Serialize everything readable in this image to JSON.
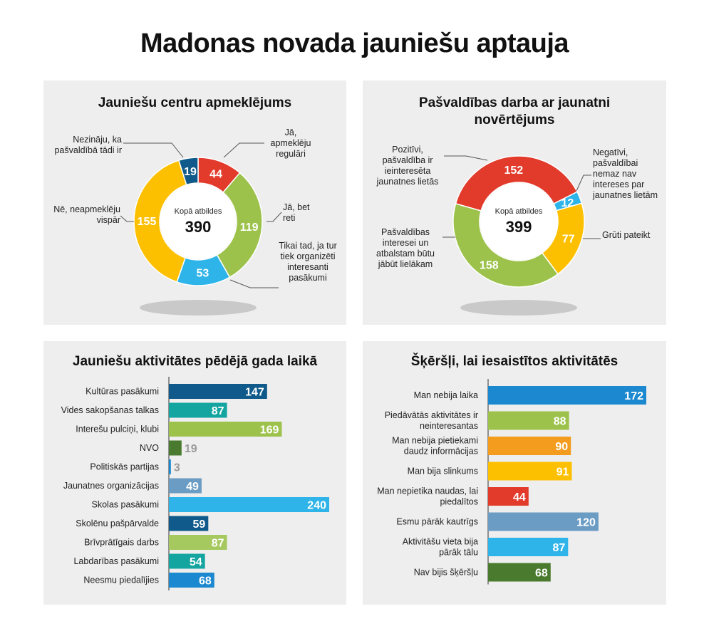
{
  "title": "Madonas novada jauniešu aptauja",
  "colors": {
    "red": "#e23a2b",
    "green": "#9cc24b",
    "lightblue": "#2eb4e8",
    "yellow": "#fdc000",
    "navy": "#0f5a8a",
    "teal": "#14a5a1",
    "darkgreen": "#4a7a2d",
    "blue": "#1b88cf",
    "steel": "#6b9cc4",
    "lightgreen": "#a6c95f",
    "orange": "#f39c1e",
    "gray": "#9a9a9a"
  },
  "chart_data": [
    {
      "type": "pie",
      "title": "Jauniešu centru apmeklējums",
      "center_label": "Kopā atbildes",
      "total": "390",
      "slices": [
        {
          "value": 44,
          "label": "Jā, apmeklēju regulāri",
          "color": "#e23a2b"
        },
        {
          "value": 119,
          "label": "Jā, bet reti",
          "color": "#9cc24b"
        },
        {
          "value": 53,
          "label": "Tikai tad, ja tur tiek organizēti interesanti pasākumi",
          "color": "#2eb4e8"
        },
        {
          "value": 155,
          "label": "Nē, neapmeklēju vispār",
          "color": "#fdc000"
        },
        {
          "value": 19,
          "label": "Nezināju, ka pašvaldībā tādi ir",
          "color": "#0f5a8a"
        }
      ]
    },
    {
      "type": "pie",
      "title": "Pašvaldības darba ar jaunatni novērtējums",
      "center_label": "Kopā atbildes",
      "total": "399",
      "slices": [
        {
          "value": 12,
          "label": "Negatīvi, pašvaldībai nemaz nav intereses par jaunatnes lietām",
          "color": "#2eb4e8"
        },
        {
          "value": 77,
          "label": "Grūti pateikt",
          "color": "#fdc000"
        },
        {
          "value": 158,
          "label": "Pašvaldības interesei un atbalstam būtu jābūt lielākam",
          "color": "#9cc24b"
        },
        {
          "value": 152,
          "label": "Pozitīvi, pašvaldība ir ieinteresēta jaunatnes lietās",
          "color": "#e23a2b"
        }
      ]
    },
    {
      "type": "bar",
      "title": "Jauniešu aktivitātes pēdējā gada laikā",
      "categories": [
        "Kultūras pasākumi",
        "Vides sakopšanas talkas",
        "Interešu pulciņi, klubi",
        "NVO",
        "Politiskās partijas",
        "Jaunatnes organizācijas",
        "Skolas pasākumi",
        "Skolēnu pašpārvalde",
        "Brīvprātīgais darbs",
        "Labdarības pasākumi",
        "Neesmu piedalījies"
      ],
      "values": [
        147,
        87,
        169,
        19,
        3,
        49,
        240,
        59,
        87,
        54,
        68
      ],
      "colors": [
        "#0f5a8a",
        "#14a5a1",
        "#9cc24b",
        "#4a7a2d",
        "#1b88cf",
        "#6b9cc4",
        "#2eb4e8",
        "#0f5a8a",
        "#a6c95f",
        "#14a5a1",
        "#1b88cf"
      ],
      "xlim": [
        0,
        240
      ]
    },
    {
      "type": "bar",
      "title": "Šķēršļi, lai iesaistītos aktivitātēs",
      "categories": [
        "Man nebija laika",
        "Piedāvātās aktivitātes ir neinteresantas",
        "Man nebija pietiekami daudz informācijas",
        "Man bija slinkums",
        "Man nepietika naudas, lai piedalītos",
        "Esmu pārāk kautrīgs",
        "Aktivitāšu vieta bija pārāk tālu",
        "Nav bijis šķēršļu"
      ],
      "values": [
        172,
        88,
        90,
        91,
        44,
        120,
        87,
        68
      ],
      "colors": [
        "#1b88cf",
        "#9cc24b",
        "#f39c1e",
        "#fdc000",
        "#e23a2b",
        "#6b9cc4",
        "#2eb4e8",
        "#4a7a2d"
      ],
      "xlim": [
        0,
        172
      ]
    }
  ]
}
